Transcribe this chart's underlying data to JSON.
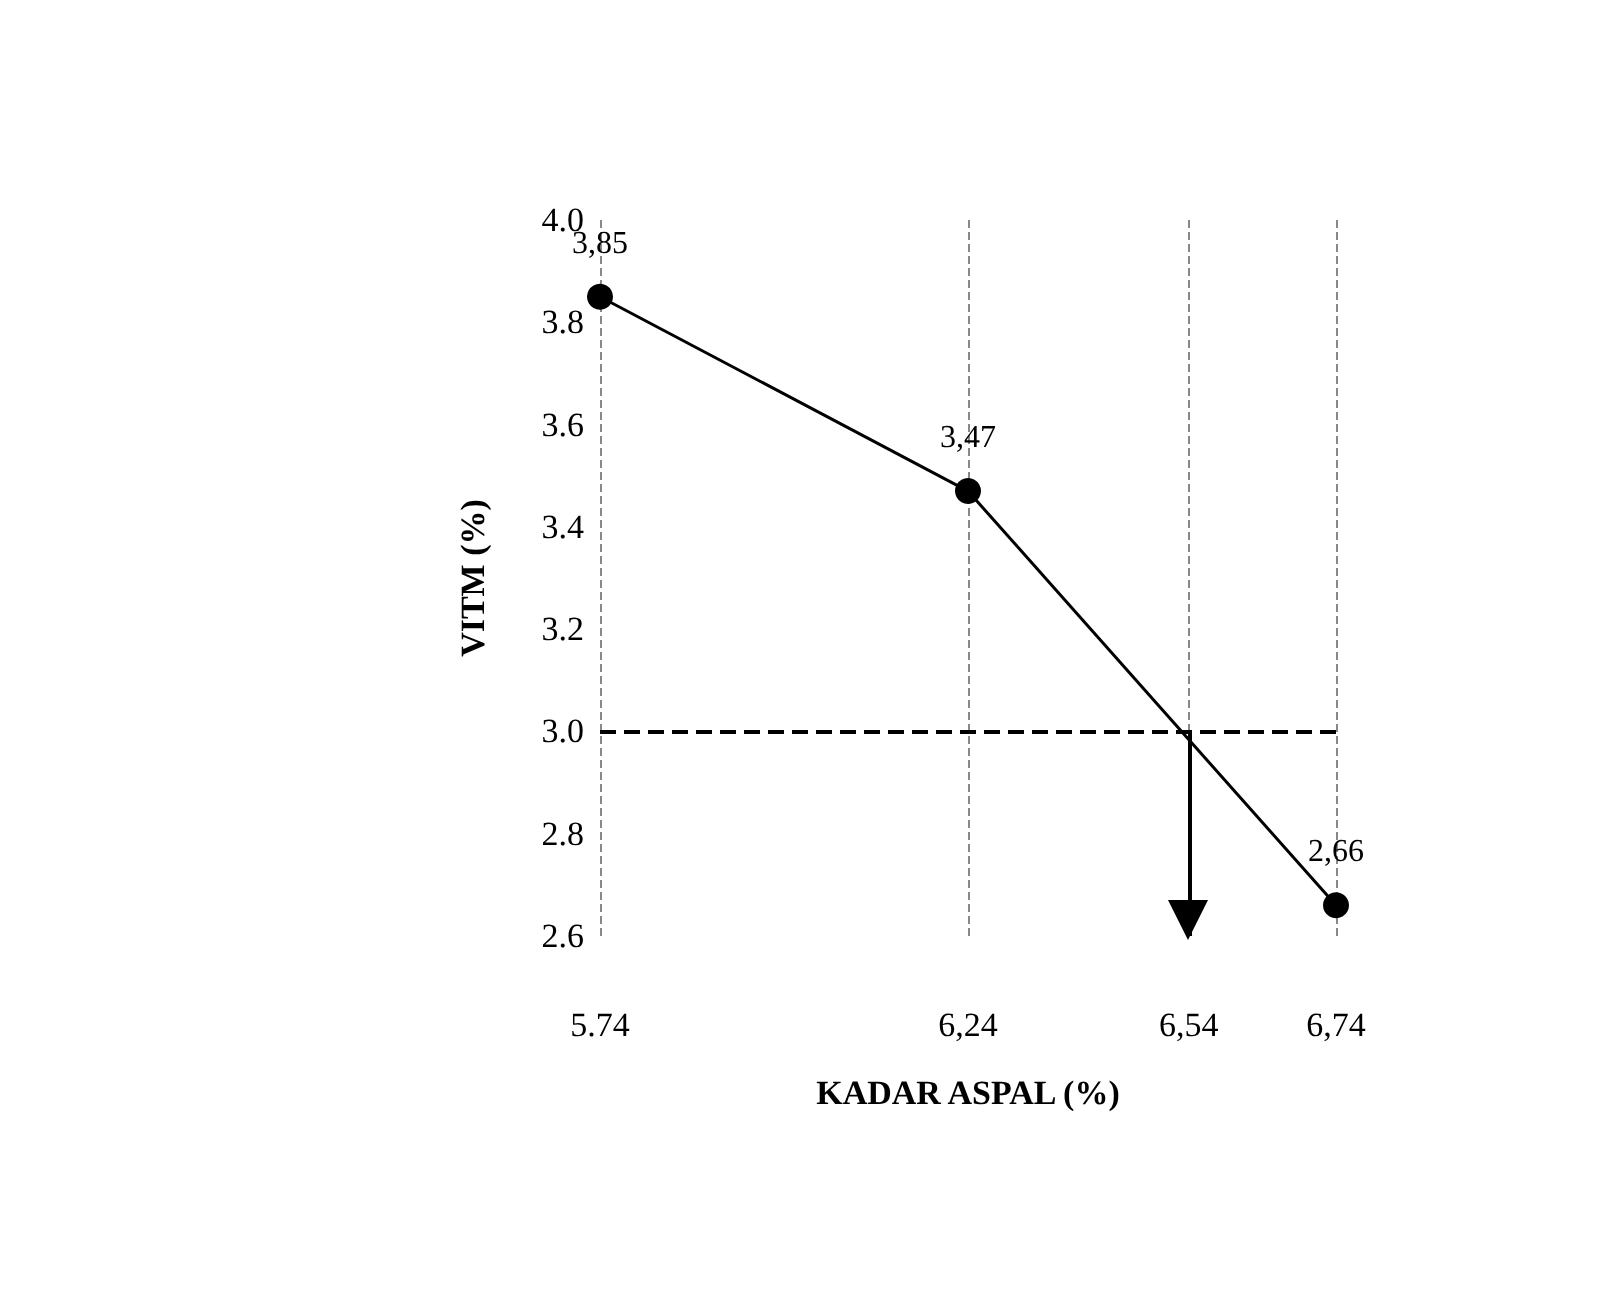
{
  "chart_data": {
    "type": "line",
    "xlabel": "KADAR ASPAL (%)",
    "ylabel": "VITM (%)",
    "x": [
      5.74,
      6.24,
      6.74
    ],
    "values": [
      3.85,
      3.47,
      2.66
    ],
    "value_labels": [
      "3,85",
      "3,47",
      "2,66"
    ],
    "color": "#000000",
    "marker": "circle",
    "line_style": "solid",
    "grid": "x",
    "xlim": [
      5.74,
      6.74
    ],
    "xticks": [
      {
        "value": 5.74,
        "label": "5.74"
      },
      {
        "value": 6.24,
        "label": "6,24"
      },
      {
        "value": 6.54,
        "label": "6,54"
      },
      {
        "value": 6.74,
        "label": "6,74"
      }
    ],
    "ylim": [
      2.6,
      4.0
    ],
    "yticks": [
      {
        "value": 2.6,
        "label": "2.6"
      },
      {
        "value": 2.8,
        "label": "2.8"
      },
      {
        "value": 3.0,
        "label": "3.0"
      },
      {
        "value": 3.2,
        "label": "3.2"
      },
      {
        "value": 3.4,
        "label": "3.4"
      },
      {
        "value": 3.6,
        "label": "3.6"
      },
      {
        "value": 3.8,
        "label": "3.8"
      },
      {
        "value": 4.0,
        "label": "4.0"
      }
    ],
    "ref_lines": [
      {
        "axis": "y",
        "value": 3.0,
        "line_style": "dashed",
        "color": "#000000"
      },
      {
        "axis": "x",
        "value": 6.54,
        "line_style": "solid",
        "color": "#000000"
      }
    ]
  }
}
